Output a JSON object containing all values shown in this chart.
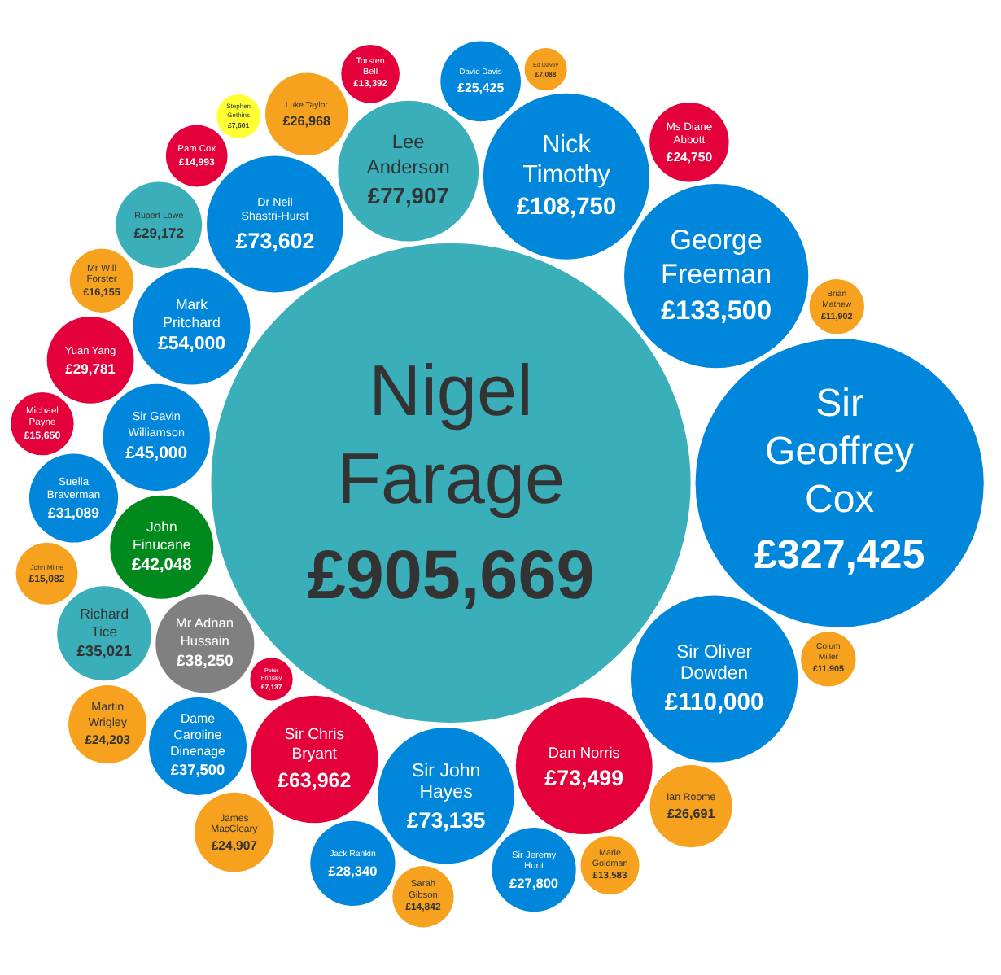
{
  "chart_data": {
    "type": "other",
    "categories": [
      "Nigel Farage",
      "Sir Geoffrey Cox",
      "George Freeman",
      "Sir Oliver Dowden",
      "Nick Timothy",
      "Lee Anderson",
      "Dr Neil Shastri-Hurst",
      "Dan Norris",
      "Sir John Hayes",
      "Sir Chris Bryant",
      "Mark Pritchard",
      "Sir Gavin Williamson",
      "John Finucane",
      "Mr Adnan Hussain",
      "Dame Caroline Dinenage",
      "Richard Tice",
      "Suella Braverman",
      "Yuan Yang",
      "Rupert Lowe",
      "Jack Rankin",
      "Sir Jeremy Hunt",
      "Luke Taylor",
      "Ian Roome",
      "David Davis",
      "James MacCleary",
      "Ms Diane Abbott",
      "Martin Wrigley",
      "Mr Will Forster",
      "Michael Payne",
      "John Milne",
      "Pam Cox",
      "Sarah Gibson",
      "Marie Goldman",
      "Torsten Bell",
      "Colum Miller",
      "Brian Mathew",
      "Stephen Gethins",
      "Peter Prinsley",
      "Ed Davey"
    ],
    "values": [
      905669,
      327425,
      133500,
      110000,
      108750,
      77907,
      73602,
      73499,
      73135,
      63962,
      54000,
      45000,
      42048,
      38250,
      37500,
      35021,
      31089,
      29781,
      29172,
      28340,
      27800,
      26968,
      26691,
      25425,
      24907,
      24750,
      24203,
      16155,
      15650,
      15082,
      14993,
      14842,
      13583,
      13392,
      11905,
      11902,
      7601,
      7137,
      7088
    ],
    "value_labels": [
      "£905,669",
      "£327,425",
      "£133,500",
      "£110,000",
      "£108,750",
      "£77,907",
      "£73,602",
      "£73,499",
      "£73,135",
      "£63,962",
      "£54,000",
      "£45,000",
      "£42,048",
      "£38,250",
      "£37,500",
      "£35,021",
      "£31,089",
      "£29,781",
      "£29,172",
      "£28,340",
      "£27,800",
      "£26,968",
      "£26,691",
      "£25,425",
      "£24,907",
      "£24,750",
      "£24,203",
      "£16,155",
      "£15,650",
      "£15,082",
      "£14,993",
      "£14,842",
      "£13,583",
      "£13,392",
      "£11,905",
      "£11,902",
      "£7,601",
      "£7,137",
      "£7,088"
    ],
    "colors": [
      "#3aafb9",
      "#0087dc",
      "#0087dc",
      "#0087dc",
      "#0087dc",
      "#3aafb9",
      "#0087dc",
      "#e4003b",
      "#0087dc",
      "#e4003b",
      "#0087dc",
      "#0087dc",
      "#008a1e",
      "#808080",
      "#0087dc",
      "#3aafb9",
      "#0087dc",
      "#e4003b",
      "#3aafb9",
      "#0087dc",
      "#0087dc",
      "#f6a21e",
      "#f6a21e",
      "#0087dc",
      "#f6a21e",
      "#e4003b",
      "#f6a21e",
      "#f6a21e",
      "#e4003b",
      "#f6a21e",
      "#e4003b",
      "#f6a21e",
      "#f6a21e",
      "#e4003b",
      "#f6a21e",
      "#f6a21e",
      "#ffff33",
      "#e4003b",
      "#f6a21e"
    ]
  }
}
